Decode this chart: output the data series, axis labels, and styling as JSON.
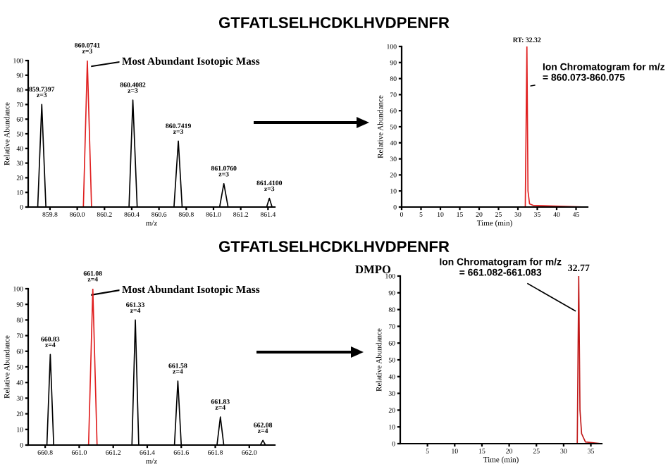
{
  "chart_data": [
    {
      "type": "line",
      "xlabel": "m/z",
      "ylabel": "Relative Abundance",
      "xlim": [
        859.64,
        861.45
      ],
      "ylim": [
        0,
        100
      ],
      "xticks": [
        {
          "value": 859.8,
          "label": "859.8"
        },
        {
          "value": 860.0,
          "label": "860.0"
        },
        {
          "value": 860.2,
          "label": "860.2"
        },
        {
          "value": 860.4,
          "label": "860.4"
        },
        {
          "value": 860.6,
          "label": "860.6"
        },
        {
          "value": 860.8,
          "label": "860.8"
        },
        {
          "value": 861.0,
          "label": "861.0"
        },
        {
          "value": 861.2,
          "label": "861.2"
        },
        {
          "value": 861.4,
          "label": "861.4"
        }
      ],
      "yticks": [
        0,
        10,
        20,
        30,
        40,
        50,
        60,
        70,
        80,
        90,
        100
      ],
      "series": [
        {
          "color": "#000000",
          "x": [
            859.64,
            859.71,
            859.7397,
            859.77,
            860.38,
            860.4082,
            860.44,
            860.71,
            860.7419,
            860.77,
            861.045,
            861.076,
            861.107,
            861.39,
            861.41,
            861.43,
            861.45
          ],
          "values": [
            0,
            0,
            70,
            0,
            0,
            73,
            0,
            0,
            45,
            0,
            0,
            16,
            0,
            0,
            6,
            0,
            0
          ]
        },
        {
          "color": "#e02020",
          "x": [
            860.045,
            860.0741,
            860.105
          ],
          "values": [
            0,
            100,
            0
          ]
        }
      ],
      "annotations": [
        "GTFATLSELHCDKLHVDPENFR",
        {
          "text": "859.7397\nz=3",
          "x": 859.7397,
          "y": 70
        },
        {
          "text": "860.0741\nz=3",
          "x": 860.0741,
          "y": 100
        },
        {
          "text": "860.4082\nz=3",
          "x": 860.4082,
          "y": 73
        },
        {
          "text": "860.7419\nz=3",
          "x": 860.7419,
          "y": 45
        },
        {
          "text": "861.0760\nz=3",
          "x": 861.076,
          "y": 16
        },
        {
          "text": "861.4100\nz=3",
          "x": 861.41,
          "y": 6
        },
        "Most Abundant Isotopic Mass"
      ]
    },
    {
      "type": "line",
      "xlabel": "Time (min)",
      "ylabel": "Relative Abundance",
      "xlim": [
        0,
        48
      ],
      "ylim": [
        0,
        100
      ],
      "xticks": [
        0,
        5,
        10,
        15,
        20,
        25,
        30,
        35,
        40,
        45
      ],
      "yticks": [
        0,
        10,
        20,
        30,
        40,
        50,
        60,
        70,
        80,
        90,
        100
      ],
      "series": [
        {
          "color": "#e02020",
          "x": [
            0,
            31.9,
            32.32,
            32.6,
            33,
            34,
            48
          ],
          "values": [
            0,
            0,
            100,
            10,
            2,
            1,
            0
          ]
        }
      ],
      "annotations": [
        {
          "text": "RT: 32.32",
          "x": 32.32,
          "y": 100
        },
        {
          "text": "Ion Chromatogram for m/z\n= 860.073-860.075",
          "x": 32.32,
          "y": 75
        }
      ]
    },
    {
      "type": "line",
      "xlabel": "m/z",
      "ylabel": "Relative Abundance",
      "xlim": [
        660.7,
        662.15
      ],
      "ylim": [
        0,
        100
      ],
      "xticks": [
        {
          "value": 660.8,
          "label": "660.8"
        },
        {
          "value": 661.0,
          "label": "661.0"
        },
        {
          "value": 661.2,
          "label": "661.2"
        },
        {
          "value": 661.4,
          "label": "661.4"
        },
        {
          "value": 661.6,
          "label": "661.6"
        },
        {
          "value": 661.8,
          "label": "661.8"
        },
        {
          "value": 662.0,
          "label": "662.0"
        }
      ],
      "yticks": [
        0,
        10,
        20,
        30,
        40,
        50,
        60,
        70,
        80,
        90,
        100
      ],
      "series": [
        {
          "color": "#000000",
          "x": [
            660.7,
            660.81,
            660.83,
            660.85,
            661.31,
            661.33,
            661.35,
            661.56,
            661.58,
            661.6,
            661.81,
            661.83,
            661.85,
            662.065,
            662.08,
            662.095,
            662.15
          ],
          "values": [
            0,
            0,
            58,
            0,
            0,
            80,
            0,
            0,
            41,
            0,
            0,
            18,
            0,
            0,
            3,
            0,
            0
          ]
        },
        {
          "color": "#e02020",
          "x": [
            661.055,
            661.08,
            661.105
          ],
          "values": [
            0,
            100,
            0
          ]
        }
      ],
      "annotations": [
        "GTFATLSELHCDKLHVDPENFR",
        "DMPO",
        {
          "text": "660.83\nz=4",
          "x": 660.83,
          "y": 58
        },
        {
          "text": "661.08\nz=4",
          "x": 661.08,
          "y": 100
        },
        {
          "text": "661.33\nz=4",
          "x": 661.33,
          "y": 80
        },
        {
          "text": "661.58\nz=4",
          "x": 661.58,
          "y": 41
        },
        {
          "text": "661.83\nz=4",
          "x": 661.83,
          "y": 18
        },
        {
          "text": "662.08\nz=4",
          "x": 662.08,
          "y": 3
        },
        "Most Abundant Isotopic Mass"
      ]
    },
    {
      "type": "line",
      "xlabel": "Time (min)",
      "ylabel": "Relative Abundance",
      "xlim": [
        0,
        37
      ],
      "ylim": [
        0,
        100
      ],
      "xticks": [
        5,
        10,
        15,
        20,
        25,
        30,
        35
      ],
      "yticks": [
        0,
        10,
        20,
        30,
        40,
        50,
        60,
        70,
        80,
        90,
        100
      ],
      "series": [
        {
          "color": "#c01818",
          "x": [
            0,
            32.5,
            32.77,
            33.0,
            33.3,
            34,
            37
          ],
          "values": [
            0,
            0,
            100,
            20,
            6,
            1,
            0
          ]
        }
      ],
      "annotations": [
        {
          "text": "32.77",
          "x": 32.77,
          "y": 100
        },
        {
          "text": "Ion Chromatogram for m/z\n= 661.082-661.083",
          "x": 32.77,
          "y": 78
        }
      ]
    }
  ]
}
